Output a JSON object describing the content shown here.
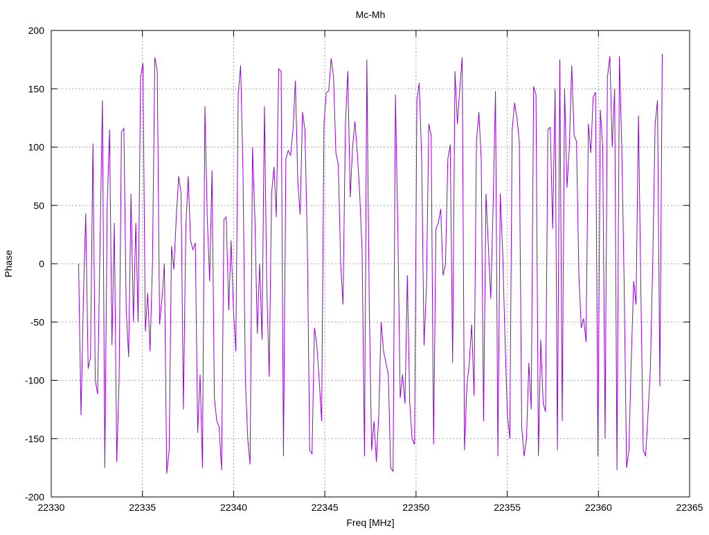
{
  "chart_data": {
    "type": "line",
    "title": "Mc-Mh",
    "xlabel": "Freq [MHz]",
    "ylabel": "Phase",
    "xlim": [
      22330,
      22365
    ],
    "ylim": [
      -200,
      200
    ],
    "xticks": [
      22330,
      22335,
      22340,
      22345,
      22350,
      22355,
      22360,
      22365
    ],
    "yticks": [
      -200,
      -150,
      -100,
      -50,
      0,
      50,
      100,
      150,
      200
    ],
    "grid": true,
    "legend": "none",
    "series": [
      {
        "name": "Mc-Mh",
        "color": "#9400d3",
        "x_range": [
          22331.5,
          22363.5
        ],
        "values": [
          0,
          -130,
          -30,
          43,
          -90,
          -80,
          103,
          -100,
          -112,
          20,
          140,
          -175,
          50,
          115,
          -70,
          35,
          -170,
          -100,
          113,
          116,
          -40,
          -80,
          60,
          -50,
          35,
          -50,
          160,
          172,
          -58,
          -25,
          -75,
          0,
          177,
          165,
          -52,
          -30,
          0,
          -180,
          -160,
          15,
          -5,
          40,
          75,
          60,
          -125,
          30,
          75,
          20,
          12,
          18,
          -145,
          -95,
          -175,
          135,
          40,
          -15,
          80,
          -115,
          -135,
          -140,
          -177,
          38,
          40,
          -40,
          20,
          -40,
          -75,
          145,
          170,
          80,
          -100,
          -150,
          -172,
          100,
          40,
          -60,
          0,
          -65,
          135,
          -20,
          -97,
          60,
          83,
          40,
          167,
          165,
          -165,
          90,
          97,
          93,
          115,
          157,
          70,
          42,
          130,
          115,
          20,
          -160,
          -163,
          -55,
          -70,
          -100,
          -135,
          120,
          147,
          148,
          176,
          160,
          95,
          85,
          0,
          -35,
          120,
          165,
          57,
          100,
          122,
          95,
          60,
          10,
          -165,
          175,
          -35,
          -160,
          -135,
          -170,
          -130,
          -50,
          -75,
          -85,
          -95,
          -175,
          -178,
          145,
          30,
          -115,
          -95,
          -120,
          -10,
          -120,
          -150,
          -155,
          140,
          155,
          90,
          -70,
          -20,
          120,
          110,
          -155,
          30,
          35,
          47,
          -10,
          0,
          90,
          102,
          -85,
          165,
          120,
          150,
          177,
          -160,
          -105,
          -85,
          -52,
          -113,
          105,
          130,
          90,
          -135,
          60,
          15,
          -30,
          50,
          148,
          -165,
          60,
          10,
          -65,
          -130,
          -150,
          115,
          138,
          125,
          105,
          -140,
          -165,
          -150,
          -85,
          -125,
          152,
          145,
          -165,
          -65,
          -120,
          -127,
          115,
          117,
          30,
          150,
          -160,
          175,
          -135,
          150,
          65,
          100,
          170,
          110,
          105,
          -10,
          -55,
          -47,
          -67,
          120,
          95,
          143,
          147,
          -165,
          132,
          100,
          -150,
          160,
          178,
          100,
          150,
          -177,
          178,
          100,
          -15,
          -175,
          -160,
          -80,
          -15,
          -35,
          127,
          -20,
          -160,
          -165,
          -130,
          -90,
          0,
          120,
          140,
          -105,
          180
        ]
      }
    ]
  }
}
